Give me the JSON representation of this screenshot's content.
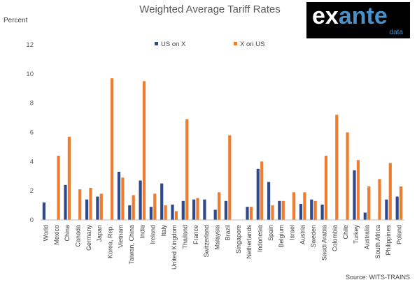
{
  "chart_data": {
    "type": "bar",
    "title": "Weighted Average Tariff Rates",
    "ylabel": "Percent",
    "source": "Source: WITS-TRAINS",
    "ylim": [
      0,
      12
    ],
    "yticks": [
      0,
      2,
      4,
      6,
      8,
      10,
      12
    ],
    "grid": false,
    "legend_position": "top",
    "categories": [
      "World",
      "Mexico",
      "China",
      "Canada",
      "Germany",
      "Japan",
      "Korea, Rep.",
      "Vietnam",
      "Taiwan, China",
      "India",
      "Ireland",
      "Italy",
      "United Kingdom",
      "Thailand",
      "France",
      "Switzerland",
      "Malaysia",
      "Brazil",
      "Singapore",
      "Netherlands",
      "Indonesia",
      "Spain",
      "Belgium",
      "Israel",
      "Austria",
      "Sweden",
      "Saudi Arabia",
      "Colombia",
      "Chile",
      "Turkey",
      "Australia",
      "South Africa",
      "Philippines",
      "Poland"
    ],
    "series": [
      {
        "name": "US on X",
        "color": "#2e4a8c",
        "values": [
          1.2,
          0,
          2.4,
          0,
          1.4,
          1.6,
          0,
          3.3,
          1.0,
          2.7,
          0.9,
          2.5,
          1.05,
          1.3,
          1.4,
          1.4,
          0.7,
          1.3,
          0,
          0.9,
          3.5,
          2.6,
          1.3,
          0,
          1.1,
          1.4,
          1.05,
          0,
          0,
          3.4,
          0.5,
          0,
          1.4,
          1.6
        ]
      },
      {
        "name": "X on US",
        "color": "#ed7d31",
        "values": [
          0,
          4.4,
          5.7,
          2.1,
          2.2,
          1.8,
          9.7,
          2.9,
          1.7,
          9.5,
          1.8,
          1.0,
          0.6,
          6.9,
          1.5,
          0,
          1.9,
          5.8,
          0,
          0.9,
          4.0,
          1.0,
          1.3,
          1.9,
          1.9,
          1.3,
          4.4,
          7.2,
          6.0,
          4.1,
          2.3,
          2.8,
          3.9,
          2.3
        ]
      }
    ]
  },
  "logo": {
    "main": "exante",
    "main_prefix": "ex",
    "main_suffix": "ante",
    "sub": "data"
  },
  "colors": {
    "us_on_x": "#2e4a8c",
    "x_on_us": "#ed7d31",
    "logo_prefix": "#ffffff",
    "logo_suffix": "#4a90c9"
  }
}
